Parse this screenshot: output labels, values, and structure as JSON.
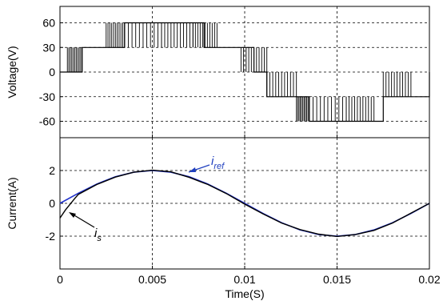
{
  "chart_data": [
    {
      "type": "line",
      "ylabel": "Voltage(V)",
      "xlim": [
        0,
        0.02
      ],
      "ylim": [
        -80,
        80
      ],
      "yticks": [
        60,
        30,
        0,
        -30,
        -60
      ],
      "grid": true,
      "series": [
        {
          "description_free": true,
          "x": [
            0,
            0.0005,
            0.0012,
            0.0025,
            0.0035,
            0.0055,
            0.0072,
            0.0078,
            0.0085,
            0.0098,
            0.0105,
            0.0112,
            0.0128,
            0.0135,
            0.0155,
            0.017,
            0.0175,
            0.019,
            0.02
          ],
          "values": [
            0,
            0,
            30,
            30,
            60,
            60,
            60,
            30,
            30,
            30,
            0,
            -30,
            -30,
            -60,
            -60,
            -60,
            -30,
            -30,
            0
          ]
        }
      ]
    },
    {
      "type": "line",
      "xlabel": "Time(S)",
      "ylabel": "Current(A)",
      "xlim": [
        0,
        0.02
      ],
      "ylim": [
        -4,
        4
      ],
      "xticks": [
        "0",
        "0.005",
        "0.01",
        "0.015",
        "0.02"
      ],
      "yticks": [
        2,
        0,
        -2
      ],
      "grid": true,
      "annotations": [
        {
          "text": "i",
          "subscript": "ref",
          "color": "#1f3fbf"
        },
        {
          "text": "i",
          "subscript": "s",
          "color": "#000000"
        }
      ],
      "series": [
        {
          "color": "#2233cc",
          "x": [
            0,
            0.001,
            0.002,
            0.003,
            0.004,
            0.005,
            0.006,
            0.007,
            0.008,
            0.009,
            0.01,
            0.011,
            0.012,
            0.013,
            0.014,
            0.015,
            0.016,
            0.017,
            0.018,
            0.019,
            0.02
          ],
          "values": [
            0,
            0.62,
            1.18,
            1.62,
            1.9,
            2.0,
            1.9,
            1.62,
            1.18,
            0.62,
            0,
            -0.62,
            -1.18,
            -1.62,
            -1.9,
            -2.0,
            -1.9,
            -1.62,
            -1.18,
            -0.62,
            0
          ]
        },
        {
          "color": "#000000",
          "x": [
            0,
            0.0003,
            0.0008,
            0.001,
            0.002,
            0.003,
            0.004,
            0.005,
            0.006,
            0.007,
            0.008,
            0.009,
            0.01,
            0.011,
            0.012,
            0.013,
            0.014,
            0.015,
            0.016,
            0.017,
            0.018,
            0.019,
            0.02
          ],
          "values": [
            -0.9,
            -0.4,
            0.3,
            0.55,
            1.15,
            1.6,
            1.9,
            2.02,
            1.92,
            1.58,
            1.15,
            0.6,
            -0.05,
            -0.65,
            -1.2,
            -1.6,
            -1.88,
            -2.02,
            -1.9,
            -1.65,
            -1.2,
            -0.6,
            0
          ]
        }
      ]
    }
  ]
}
